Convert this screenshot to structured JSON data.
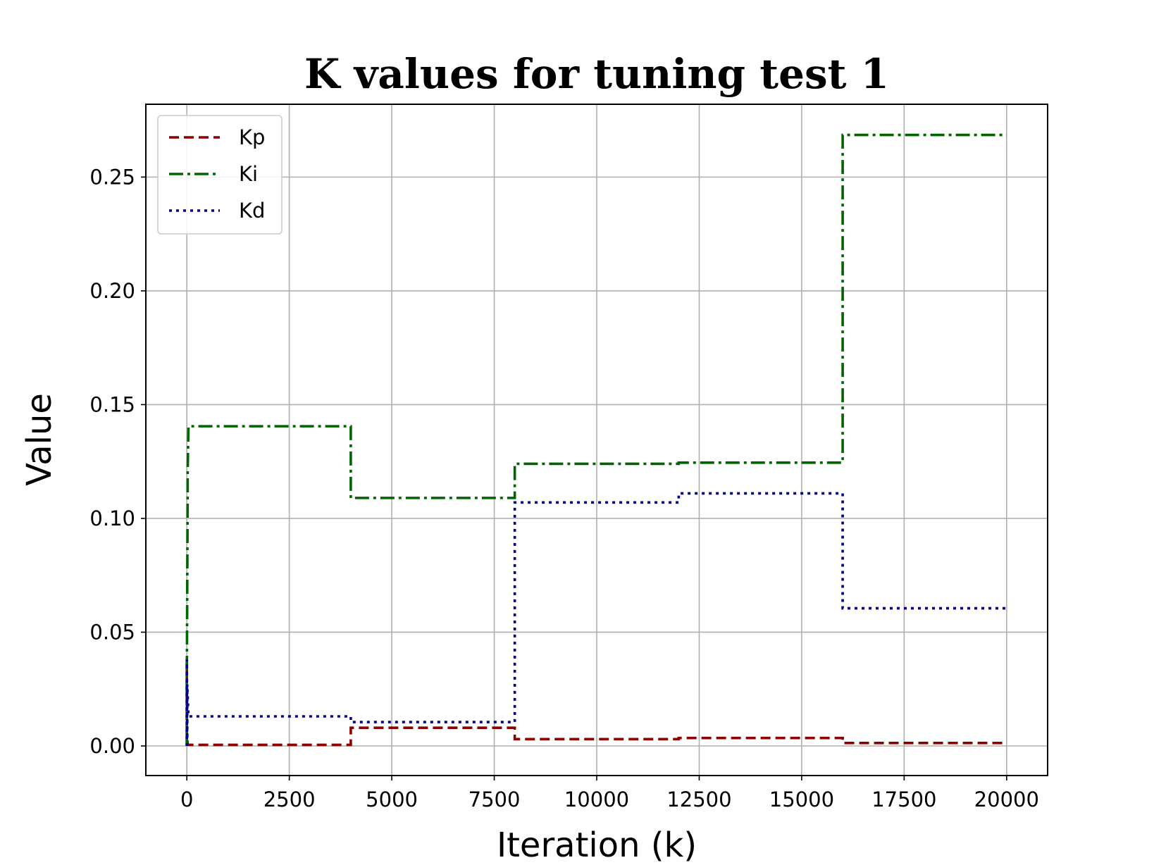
{
  "chart_data": {
    "type": "line",
    "title": "K values for tuning test 1",
    "xlabel": "Iteration (k)",
    "ylabel": "Value",
    "xlim": [
      -1000,
      21000
    ],
    "ylim": [
      -0.013,
      0.282
    ],
    "xticks": [
      0,
      2500,
      5000,
      7500,
      10000,
      12500,
      15000,
      17500,
      20000
    ],
    "xtick_labels": [
      "0",
      "2500",
      "5000",
      "7500",
      "10000",
      "12500",
      "15000",
      "17500",
      "20000"
    ],
    "yticks": [
      0.0,
      0.05,
      0.1,
      0.15,
      0.2,
      0.25
    ],
    "ytick_labels": [
      "0.00",
      "0.05",
      "0.10",
      "0.15",
      "0.20",
      "0.25"
    ],
    "grid": true,
    "legend_position": "top-left",
    "series": [
      {
        "name": "Kp",
        "color": "#8b0000",
        "dash": "dashed",
        "x": [
          0,
          0,
          0,
          20,
          40,
          4000,
          4000,
          8000,
          8000,
          12000,
          12000,
          16000,
          16000,
          20000
        ],
        "y": [
          0.0,
          0.037,
          0.005,
          0.001,
          0.0005,
          0.0005,
          0.008,
          0.008,
          0.003,
          0.003,
          0.0035,
          0.0035,
          0.0013,
          0.0013
        ]
      },
      {
        "name": "Ki",
        "color": "#006400",
        "dash": "dashdot",
        "x": [
          0,
          0,
          20,
          20,
          40,
          4000,
          4000,
          8000,
          8000,
          12000,
          12000,
          16000,
          16000,
          20000
        ],
        "y": [
          0.0,
          0.03,
          0.11,
          0.12,
          0.1405,
          0.1405,
          0.109,
          0.109,
          0.124,
          0.124,
          0.1245,
          0.1245,
          0.2685,
          0.2685
        ]
      },
      {
        "name": "Kd",
        "color": "#00008b",
        "dash": "dotted",
        "x": [
          0,
          0,
          10,
          10,
          40,
          4000,
          4000,
          8000,
          8000,
          12000,
          12000,
          16000,
          16000,
          20000
        ],
        "y": [
          0.0,
          0.038,
          0.003,
          0.027,
          0.013,
          0.013,
          0.0105,
          0.0105,
          0.107,
          0.107,
          0.111,
          0.111,
          0.0605,
          0.0605
        ]
      }
    ]
  }
}
